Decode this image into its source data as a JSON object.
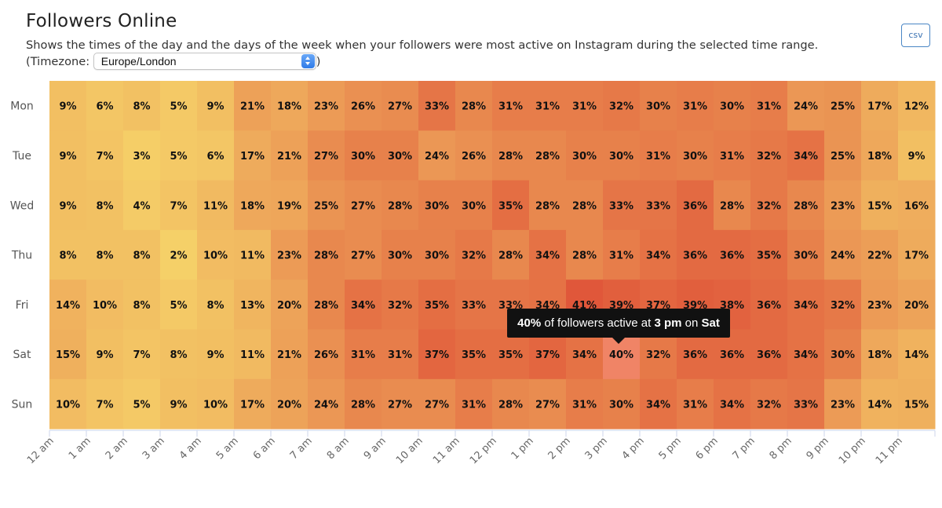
{
  "header": {
    "title": "Followers Online",
    "description_prefix": "Shows the times of the day and the days of the week when your followers were most active on Instagram during the selected time range. (Timezone:",
    "description_suffix": ")",
    "timezone_value": "Europe/London",
    "csv_label": "csv"
  },
  "colors": {
    "low": "#f6d56a",
    "mid": "#ec9d57",
    "high": "#e0573a",
    "highlight": "#f08466"
  },
  "tooltip": {
    "value": "40%",
    "text_a": "of followers active at",
    "time": "3 pm",
    "text_b": "on",
    "day": "Sat"
  },
  "chart_data": {
    "type": "heatmap",
    "title": "Followers Online",
    "days": [
      "Mon",
      "Tue",
      "Wed",
      "Thu",
      "Fri",
      "Sat",
      "Sun"
    ],
    "hours": [
      "12 am",
      "1 am",
      "2 am",
      "3 am",
      "4 am",
      "5 am",
      "6 am",
      "7 am",
      "8 am",
      "9 am",
      "10 am",
      "11 am",
      "12 pm",
      "1 pm",
      "2 pm",
      "3 pm",
      "4 pm",
      "5 pm",
      "6 pm",
      "7 pm",
      "8 pm",
      "9 pm",
      "10 pm",
      "11 pm"
    ],
    "unit": "%",
    "values": [
      [
        9,
        6,
        8,
        5,
        9,
        21,
        18,
        23,
        26,
        27,
        33,
        28,
        31,
        31,
        31,
        32,
        30,
        31,
        30,
        31,
        24,
        25,
        17,
        12
      ],
      [
        9,
        7,
        3,
        5,
        6,
        17,
        21,
        27,
        30,
        30,
        24,
        26,
        28,
        28,
        30,
        30,
        31,
        30,
        31,
        32,
        34,
        25,
        18,
        9
      ],
      [
        9,
        8,
        4,
        7,
        11,
        18,
        19,
        25,
        27,
        28,
        30,
        30,
        35,
        28,
        28,
        33,
        33,
        36,
        28,
        32,
        28,
        23,
        15,
        16
      ],
      [
        8,
        8,
        8,
        2,
        10,
        11,
        23,
        28,
        27,
        30,
        30,
        32,
        28,
        34,
        28,
        31,
        34,
        36,
        36,
        35,
        30,
        24,
        22,
        17
      ],
      [
        14,
        10,
        8,
        5,
        8,
        13,
        20,
        28,
        34,
        32,
        35,
        33,
        33,
        34,
        41,
        39,
        37,
        39,
        38,
        36,
        34,
        32,
        23,
        20
      ],
      [
        15,
        9,
        7,
        8,
        9,
        11,
        21,
        26,
        31,
        31,
        37,
        35,
        35,
        37,
        34,
        40,
        32,
        36,
        36,
        36,
        34,
        30,
        18,
        14
      ],
      [
        10,
        7,
        5,
        9,
        10,
        17,
        20,
        24,
        28,
        27,
        27,
        31,
        28,
        27,
        31,
        30,
        34,
        31,
        34,
        32,
        33,
        23,
        14,
        15
      ]
    ],
    "highlighted": {
      "day": "Sat",
      "hour": "3 pm"
    }
  }
}
